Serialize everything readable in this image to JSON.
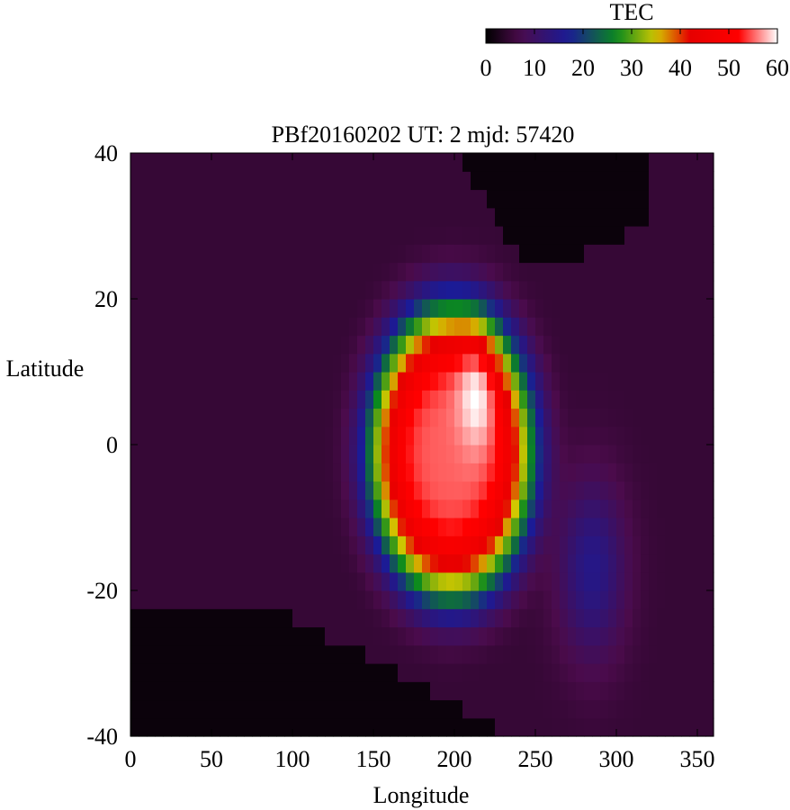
{
  "chart_data": {
    "type": "heatmap",
    "title": "PBf20160202  UT: 2  mjd: 57420",
    "xlabel": "Longitude",
    "ylabel": "Latitude",
    "xlim": [
      0,
      360
    ],
    "ylim": [
      -40,
      40
    ],
    "x_ticks": [
      "0",
      "50",
      "100",
      "150",
      "200",
      "250",
      "300",
      "350"
    ],
    "y_ticks": [
      "40",
      "20",
      "0",
      "-20",
      "-40"
    ],
    "colorbar": {
      "label": "TEC",
      "range": [
        0,
        60
      ],
      "ticks": [
        "0",
        "10",
        "20",
        "30",
        "40",
        "50",
        "60"
      ],
      "colors": [
        "#000000",
        "#4b0b4b",
        "#1b1b96",
        "#0a8a1e",
        "#d2c800",
        "#e60000",
        "#ff0000",
        "#ffffff"
      ]
    },
    "grid_resolution_deg": [
      5,
      2.5
    ],
    "features": {
      "peak_tec": 57,
      "peak_longitude": 208,
      "peak_latitude": 8,
      "anomaly_crest_latitudes": [
        14,
        -12
      ],
      "dark_region_south_edge_west": -23,
      "dark_region_north_edge_east": 25
    }
  }
}
